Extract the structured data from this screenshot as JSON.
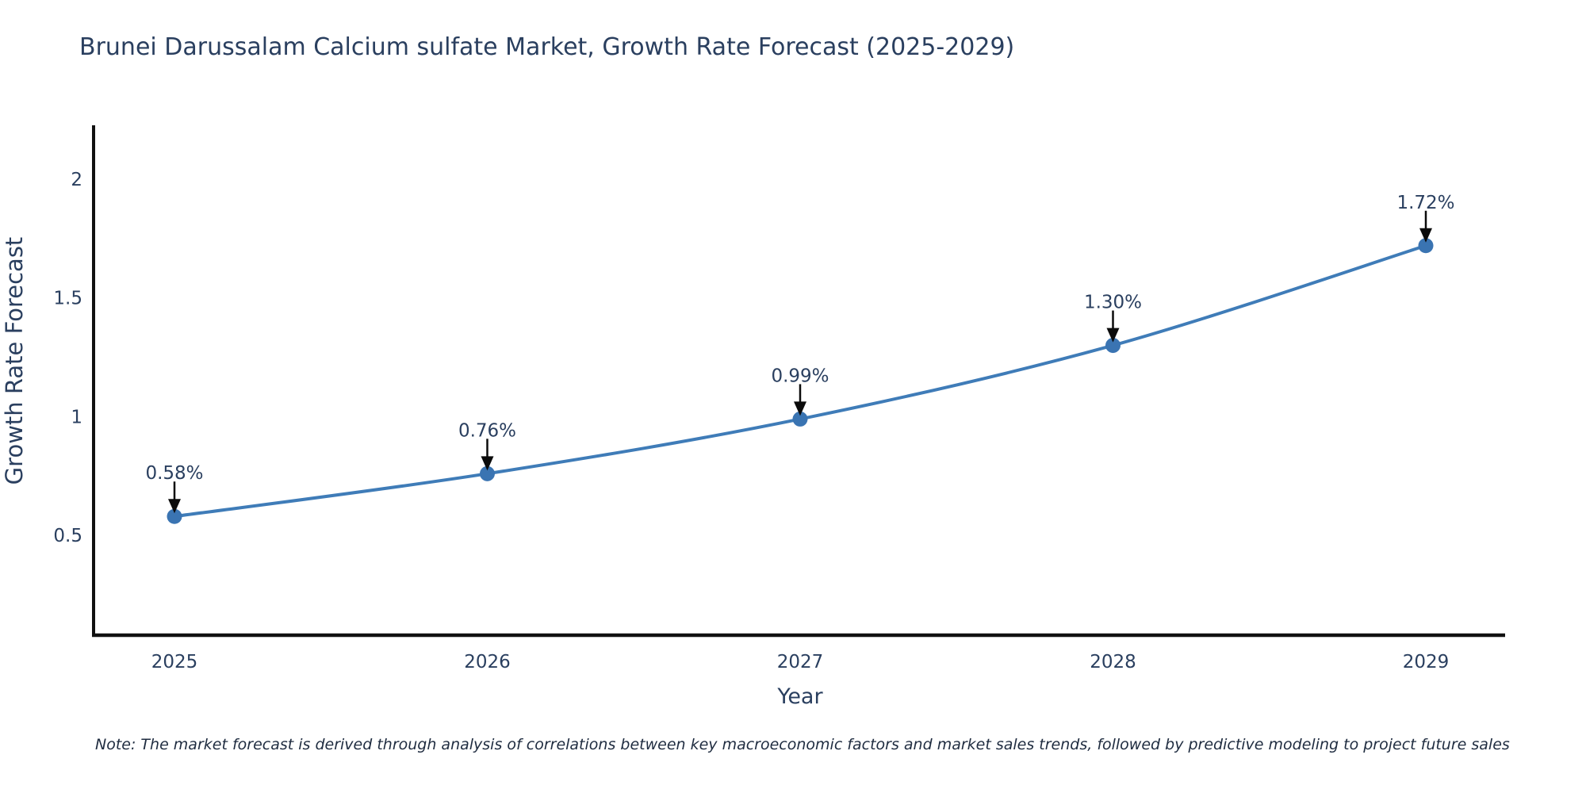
{
  "note": "Note: The market forecast is derived through analysis of correlations between key macroeconomic factors and market sales trends, followed by predictive modeling to project future sales",
  "chart_data": {
    "type": "line",
    "title": "Brunei Darussalam Calcium sulfate Market, Growth Rate Forecast (2025-2029)",
    "xlabel": "Year",
    "ylabel": "Growth Rate Forecast",
    "x": [
      2025,
      2026,
      2027,
      2028,
      2029
    ],
    "xtick_labels": [
      "2025",
      "2026",
      "2027",
      "2028",
      "2029"
    ],
    "values": [
      0.58,
      0.76,
      0.99,
      1.3,
      1.72
    ],
    "point_labels": [
      "0.58%",
      "0.76%",
      "0.99%",
      "1.30%",
      "1.72%"
    ],
    "yticks": [
      0.5,
      1,
      1.5,
      2
    ],
    "ytick_labels": [
      "0.5",
      "1",
      "1.5",
      "2"
    ],
    "ylim": [
      0.08,
      2.22
    ],
    "grid": false,
    "legend": false,
    "line_shape": "spline",
    "colors": {
      "line": "#3f7cb8",
      "marker": "#3a74b2",
      "arrow": "#0b0b0b",
      "axis": "#111111",
      "text": "#2a3f5f"
    }
  }
}
